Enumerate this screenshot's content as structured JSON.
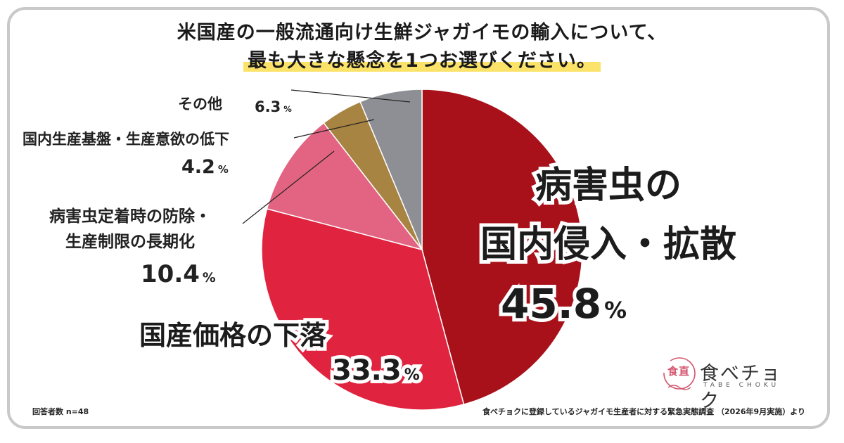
{
  "title": {
    "line1": "米国産の一般流通向け生鮮ジャガイモの輸入について、",
    "line2": "最も大きな懸念を1つお選びください。"
  },
  "chart_data": {
    "type": "pie",
    "start_angle_deg": 0,
    "direction": "clockwise",
    "slices": [
      {
        "label_lines": [
          "病害虫の",
          "国内侵入・拡散"
        ],
        "value": 45.8,
        "color": "#a8111a"
      },
      {
        "label_lines": [
          "国産価格の下落"
        ],
        "value": 33.3,
        "color": "#e0233f"
      },
      {
        "label_lines": [
          "病害虫定着時の防除・",
          "生産制限の長期化"
        ],
        "value": 10.4,
        "color": "#e26482"
      },
      {
        "label_lines": [
          "国内生産基盤・生産意欲の低下"
        ],
        "value": 4.2,
        "color": "#a78442"
      },
      {
        "label_lines": [
          "その他"
        ],
        "value": 6.3,
        "color": "#8e8f94"
      }
    ],
    "unit": "%"
  },
  "footer": {
    "respondents": "回答者数 n=48",
    "source": "食べチョクに登録しているジャガイモ生産者に対する緊急実態調査 （2026年9月実施）より"
  },
  "logo": {
    "name": "食べチョク",
    "sub": "TABE CHOKU",
    "mark_text": "食直",
    "color": "#d3576f"
  }
}
